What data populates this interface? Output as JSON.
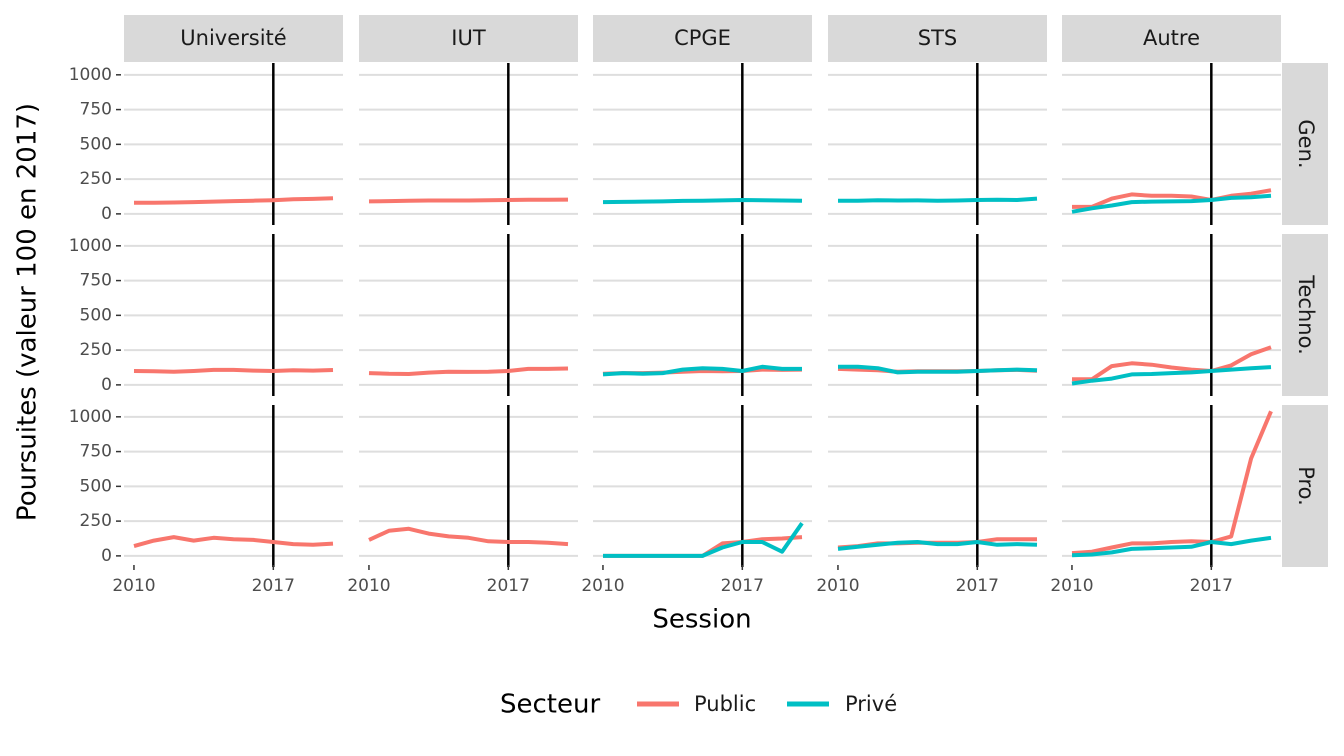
{
  "chart_data": {
    "type": "line",
    "x_label": "Session",
    "y_label": "Poursuites (valeur 100 en 2017)",
    "legend_title": "Secteur",
    "x": [
      2010,
      2011,
      2012,
      2013,
      2014,
      2015,
      2016,
      2017,
      2018,
      2019,
      2020
    ],
    "xlim": [
      2009.5,
      2020.5
    ],
    "xticks": [
      2010,
      2017
    ],
    "ylim": [
      -80,
      1085
    ],
    "yticks": [
      0,
      250,
      500,
      750,
      1000
    ],
    "grid": true,
    "vline": 2017,
    "columns": [
      "Université",
      "IUT",
      "CPGE",
      "STS",
      "Autre"
    ],
    "rows": [
      {
        "label": "Gen.",
        "panels": [
          {
            "series": [
              {
                "name": "Public",
                "color": "#F8766D",
                "values": [
                  80,
                  80,
                  82,
                  85,
                  88,
                  92,
                  95,
                  98,
                  105,
                  108,
                  113
                ]
              }
            ]
          },
          {
            "series": [
              {
                "name": "Public",
                "color": "#F8766D",
                "values": [
                  90,
                  92,
                  95,
                  96,
                  96,
                  96,
                  98,
                  100,
                  102,
                  102,
                  103
                ]
              }
            ]
          },
          {
            "series": [
              {
                "name": "Privé",
                "color": "#00BFC4",
                "values": [
                  85,
                  86,
                  88,
                  90,
                  93,
                  95,
                  97,
                  100,
                  98,
                  96,
                  95
                ]
              }
            ]
          },
          {
            "series": [
              {
                "name": "Privé",
                "color": "#00BFC4",
                "values": [
                  95,
                  95,
                  98,
                  96,
                  97,
                  95,
                  96,
                  100,
                  102,
                  100,
                  110
                ]
              }
            ]
          },
          {
            "series": [
              {
                "name": "Public",
                "color": "#F8766D",
                "values": [
                  50,
                  50,
                  110,
                  140,
                  130,
                  130,
                  125,
                  100,
                  130,
                  145,
                  170
                ]
              },
              {
                "name": "Privé",
                "color": "#00BFC4",
                "values": [
                  15,
                  40,
                  60,
                  85,
                  88,
                  90,
                  92,
                  100,
                  115,
                  120,
                  130
                ]
              }
            ]
          }
        ]
      },
      {
        "label": "Techno.",
        "panels": [
          {
            "series": [
              {
                "name": "Public",
                "color": "#F8766D",
                "values": [
                  100,
                  98,
                  95,
                  100,
                  108,
                  108,
                  103,
                  100,
                  105,
                  103,
                  107
                ]
              }
            ]
          },
          {
            "series": [
              {
                "name": "Public",
                "color": "#F8766D",
                "values": [
                  85,
                  80,
                  78,
                  88,
                  95,
                  93,
                  95,
                  100,
                  115,
                  115,
                  118
                ]
              }
            ]
          },
          {
            "series": [
              {
                "name": "Public",
                "color": "#F8766D",
                "values": [
                  80,
                  85,
                  85,
                  88,
                  95,
                  100,
                  98,
                  100,
                  110,
                  108,
                  110
                ]
              },
              {
                "name": "Privé",
                "color": "#00BFC4",
                "values": [
                  75,
                  85,
                  80,
                  85,
                  110,
                  120,
                  115,
                  100,
                  130,
                  115,
                  115
                ]
              }
            ]
          },
          {
            "series": [
              {
                "name": "Public",
                "color": "#F8766D",
                "values": [
                  115,
                  110,
                  105,
                  95,
                  98,
                  98,
                  98,
                  100,
                  105,
                  108,
                  102
                ]
              },
              {
                "name": "Privé",
                "color": "#00BFC4",
                "values": [
                  130,
                  130,
                  120,
                  90,
                  95,
                  95,
                  95,
                  100,
                  105,
                  110,
                  105
                ]
              }
            ]
          },
          {
            "series": [
              {
                "name": "Public",
                "color": "#F8766D",
                "values": [
                  40,
                  40,
                  135,
                  155,
                  145,
                  125,
                  110,
                  100,
                  140,
                  220,
                  270
                ]
              },
              {
                "name": "Privé",
                "color": "#00BFC4",
                "values": [
                  10,
                  30,
                  45,
                  75,
                  78,
                  85,
                  90,
                  100,
                  110,
                  120,
                  128
                ]
              }
            ]
          }
        ]
      },
      {
        "label": "Pro.",
        "panels": [
          {
            "series": [
              {
                "name": "Public",
                "color": "#F8766D",
                "values": [
                  70,
                  110,
                  135,
                  110,
                  130,
                  120,
                  115,
                  100,
                  85,
                  80,
                  88
                ]
              }
            ]
          },
          {
            "series": [
              {
                "name": "Public",
                "color": "#F8766D",
                "values": [
                  115,
                  180,
                  195,
                  160,
                  140,
                  130,
                  105,
                  100,
                  100,
                  95,
                  85
                ]
              }
            ]
          },
          {
            "series": [
              {
                "name": "Public",
                "color": "#F8766D",
                "values": [
                  0,
                  0,
                  0,
                  0,
                  0,
                  0,
                  90,
                  100,
                  120,
                  125,
                  135
                ]
              },
              {
                "name": "Privé",
                "color": "#00BFC4",
                "values": [
                  0,
                  0,
                  0,
                  0,
                  0,
                  0,
                  60,
                  100,
                  100,
                  30,
                  235
                ]
              }
            ]
          },
          {
            "series": [
              {
                "name": "Public",
                "color": "#F8766D",
                "values": [
                  60,
                  70,
                  90,
                  90,
                  95,
                  95,
                  95,
                  100,
                  120,
                  120,
                  120
                ]
              },
              {
                "name": "Privé",
                "color": "#00BFC4",
                "values": [
                  50,
                  65,
                  80,
                  95,
                  100,
                  85,
                  85,
                  100,
                  80,
                  85,
                  80
                ]
              }
            ]
          },
          {
            "series": [
              {
                "name": "Public",
                "color": "#F8766D",
                "values": [
                  20,
                  30,
                  60,
                  90,
                  90,
                  100,
                  105,
                  100,
                  140,
                  700,
                  1040
                ]
              },
              {
                "name": "Privé",
                "color": "#00BFC4",
                "values": [
                  5,
                  10,
                  25,
                  50,
                  55,
                  60,
                  65,
                  100,
                  85,
                  110,
                  130
                ]
              }
            ]
          }
        ]
      }
    ]
  }
}
